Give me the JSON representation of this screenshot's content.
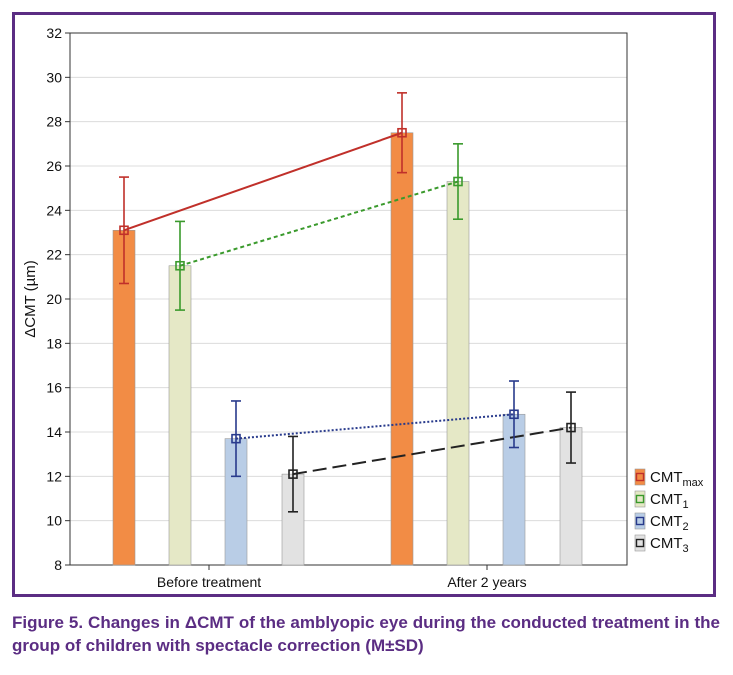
{
  "caption": "Figure 5. Changes in ΔCMT of the amblyopic eye during the conducted treatment in the group of children with spectacle correction (M±SD)",
  "chart_data": {
    "type": "bar",
    "ylabel": "ΔCMT (µm)",
    "ylim": [
      8,
      32
    ],
    "yticks": [
      8,
      10,
      12,
      14,
      16,
      18,
      20,
      22,
      24,
      26,
      28,
      30,
      32
    ],
    "grid": true,
    "legend_position": "right",
    "categories": [
      "Before treatment",
      "After 2 years"
    ],
    "series": [
      {
        "name": "CMTmax",
        "label_main": "CMT",
        "label_sub": "max",
        "values": [
          23.1,
          27.5
        ],
        "sd": [
          2.4,
          1.8
        ],
        "bar_color": "#f28c45",
        "line_color": "#c0302a",
        "line_style": "solid"
      },
      {
        "name": "CMT1",
        "label_main": "CMT",
        "label_sub": "1",
        "values": [
          21.5,
          25.3
        ],
        "sd": [
          2.0,
          1.7
        ],
        "bar_color": "#e5e8c6",
        "line_color": "#3a9a2c",
        "line_style": "dotted"
      },
      {
        "name": "CMT2",
        "label_main": "CMT",
        "label_sub": "2",
        "values": [
          13.7,
          14.8
        ],
        "sd": [
          1.7,
          1.5
        ],
        "bar_color": "#b9cde6",
        "line_color": "#283a8c",
        "line_style": "dotted-fine"
      },
      {
        "name": "CMT3",
        "label_main": "CMT",
        "label_sub": "3",
        "values": [
          12.1,
          14.2
        ],
        "sd": [
          1.7,
          1.6
        ],
        "bar_color": "#e2e2e2",
        "line_color": "#222222",
        "line_style": "dashed"
      }
    ]
  }
}
